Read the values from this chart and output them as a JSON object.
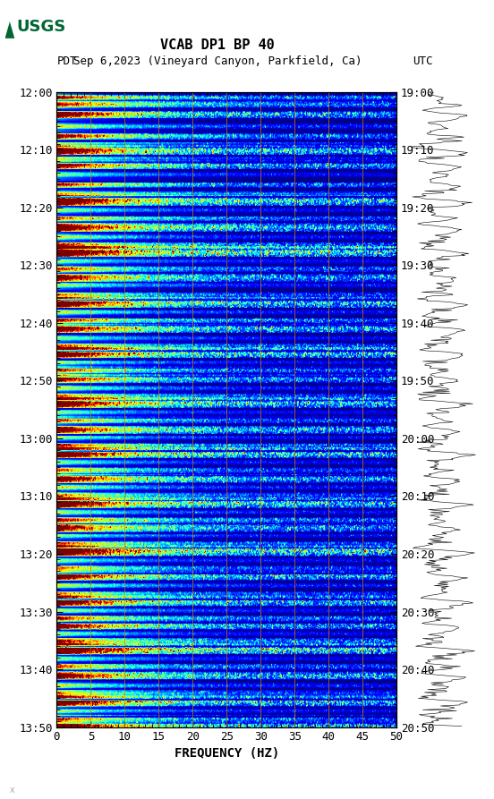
{
  "title_line1": "VCAB DP1 BP 40",
  "title_line2_left": "PDT",
  "title_line2_mid": "Sep 6,2023 (Vineyard Canyon, Parkfield, Ca)",
  "title_line2_right": "UTC",
  "xlabel": "FREQUENCY (HZ)",
  "freq_min": 0,
  "freq_max": 50,
  "time_left_ticks": [
    "12:00",
    "12:10",
    "12:20",
    "12:30",
    "12:40",
    "12:50",
    "13:00",
    "13:10",
    "13:20",
    "13:30",
    "13:40",
    "13:50"
  ],
  "time_right_ticks": [
    "19:00",
    "19:10",
    "19:20",
    "19:30",
    "19:40",
    "19:50",
    "20:00",
    "20:10",
    "20:20",
    "20:30",
    "20:40",
    "20:50"
  ],
  "freq_ticks": [
    0,
    5,
    10,
    15,
    20,
    25,
    30,
    35,
    40,
    45,
    50
  ],
  "background_color": "#ffffff",
  "spectrogram_cmap": "jet",
  "grid_color": "#cc8800",
  "logo_color": "#006633",
  "figsize": [
    5.52,
    8.93
  ],
  "dpi": 100
}
